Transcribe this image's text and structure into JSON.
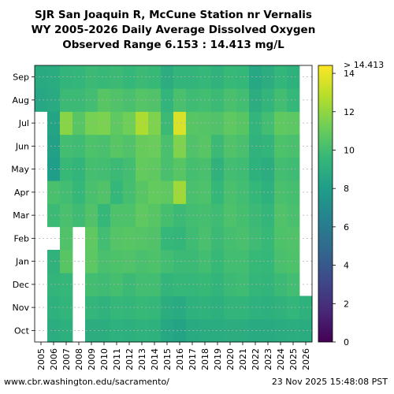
{
  "header": {
    "title_line1": "SJR San Joaquin R, McCune Station nr Vernalis",
    "title_line2": "WY 2005-2026 Daily Average Dissolved Oxygen",
    "title_line3": "Observed Range 6.153 : 14.413 mg/L"
  },
  "footer": {
    "url": "www.cbr.washington.edu/sacramento/",
    "timestamp": "23 Nov 2025 15:48:08 PST"
  },
  "chart_data": {
    "type": "heatmap",
    "title": "SJR San Joaquin R, McCune Station nr Vernalis WY 2005-2026 Daily Average Dissolved Oxygen",
    "subtitle": "Observed Range 6.153 : 14.413 mg/L",
    "x_categories": [
      "2005",
      "2006",
      "2007",
      "2008",
      "2009",
      "2010",
      "2011",
      "2012",
      "2013",
      "2014",
      "2015",
      "2016",
      "2017",
      "2018",
      "2019",
      "2020",
      "2021",
      "2022",
      "2023",
      "2024",
      "2025",
      "2026"
    ],
    "y_categories": [
      "Oct",
      "Nov",
      "Dec",
      "Jan",
      "Feb",
      "Mar",
      "Apr",
      "May",
      "Jun",
      "Jul",
      "Aug",
      "Sep"
    ],
    "observed_min": 6.153,
    "observed_max": 14.413,
    "units": "mg/L",
    "colorbar": {
      "ticks": [
        0,
        2,
        4,
        6,
        8,
        10,
        12,
        14
      ],
      "top_label": "> 14.413",
      "range": [
        0,
        14.413
      ],
      "colormap": "viridis"
    },
    "monthly_values": [
      {
        "wy": "2005",
        "values": [
          null,
          null,
          null,
          null,
          null,
          null,
          null,
          null,
          null,
          null,
          8.6,
          8.8
        ]
      },
      {
        "wy": "2006",
        "values": [
          9.0,
          9.2,
          9.4,
          9.3,
          null,
          9.8,
          10.2,
          8.0,
          8.2,
          8.4,
          8.8,
          8.9
        ]
      },
      {
        "wy": "2007",
        "values": [
          9.1,
          9.4,
          9.6,
          10.6,
          10.4,
          10.2,
          10.0,
          9.7,
          10.0,
          11.8,
          9.8,
          9.4
        ]
      },
      {
        "wy": "2008",
        "values": [
          null,
          null,
          null,
          null,
          null,
          9.9,
          9.6,
          9.4,
          9.9,
          10.6,
          9.8,
          9.5
        ]
      },
      {
        "wy": "2009",
        "values": [
          9.0,
          9.5,
          10.0,
          10.7,
          10.8,
          10.4,
          10.2,
          10.1,
          10.3,
          11.4,
          10.0,
          9.8
        ]
      },
      {
        "wy": "2010",
        "values": [
          9.0,
          9.3,
          9.9,
          10.2,
          10.0,
          9.6,
          10.4,
          10.0,
          10.2,
          11.5,
          10.6,
          9.7
        ]
      },
      {
        "wy": "2011",
        "values": [
          9.2,
          9.6,
          10.1,
          10.3,
          10.5,
          10.3,
          9.6,
          9.8,
          10.6,
          10.8,
          10.4,
          9.8
        ]
      },
      {
        "wy": "2012",
        "values": [
          9.1,
          9.5,
          9.8,
          10.4,
          10.6,
          10.3,
          10.1,
          10.0,
          10.4,
          11.2,
          10.2,
          9.6
        ]
      },
      {
        "wy": "2013",
        "values": [
          9.3,
          9.7,
          10.0,
          10.2,
          10.5,
          10.8,
          10.6,
          10.9,
          11.0,
          12.6,
          10.5,
          9.8
        ]
      },
      {
        "wy": "2014",
        "values": [
          9.2,
          9.6,
          10.0,
          10.3,
          10.4,
          10.6,
          10.9,
          10.8,
          11.1,
          11.6,
          10.4,
          9.7
        ]
      },
      {
        "wy": "2015",
        "values": [
          8.6,
          9.0,
          9.4,
          10.0,
          9.6,
          10.1,
          10.8,
          10.2,
          10.2,
          9.8,
          9.4,
          9.0
        ]
      },
      {
        "wy": "2016",
        "values": [
          8.4,
          8.8,
          9.6,
          9.8,
          9.5,
          9.8,
          12.3,
          10.6,
          11.6,
          13.6,
          10.2,
          9.4
        ]
      },
      {
        "wy": "2017",
        "values": [
          8.8,
          9.2,
          9.6,
          9.8,
          9.9,
          10.0,
          10.2,
          10.1,
          10.4,
          10.6,
          9.9,
          9.4
        ]
      },
      {
        "wy": "2018",
        "values": [
          8.9,
          9.3,
          9.7,
          10.0,
          10.2,
          10.1,
          10.3,
          10.2,
          10.6,
          10.5,
          10.0,
          9.6
        ]
      },
      {
        "wy": "2019",
        "values": [
          8.9,
          9.1,
          9.4,
          9.7,
          9.8,
          9.9,
          9.6,
          9.3,
          9.8,
          10.4,
          9.8,
          9.3
        ]
      },
      {
        "wy": "2020",
        "values": [
          9.0,
          9.4,
          9.8,
          10.0,
          10.1,
          10.3,
          10.2,
          10.0,
          10.4,
          10.8,
          10.2,
          9.7
        ]
      },
      {
        "wy": "2021",
        "values": [
          9.0,
          9.4,
          9.9,
          10.0,
          10.2,
          10.1,
          10.0,
          9.9,
          10.2,
          10.6,
          10.0,
          9.6
        ]
      },
      {
        "wy": "2022",
        "values": [
          8.8,
          9.2,
          9.5,
          9.7,
          9.9,
          9.8,
          9.6,
          9.2,
          9.3,
          9.4,
          9.0,
          8.6
        ]
      },
      {
        "wy": "2023",
        "values": [
          8.8,
          9.1,
          9.4,
          9.6,
          9.7,
          9.5,
          9.2,
          9.0,
          9.4,
          10.0,
          9.4,
          9.0
        ]
      },
      {
        "wy": "2024",
        "values": [
          8.9,
          9.3,
          9.8,
          10.2,
          10.3,
          10.4,
          10.2,
          10.0,
          10.3,
          10.8,
          10.0,
          9.5
        ]
      },
      {
        "wy": "2025",
        "values": [
          9.0,
          9.5,
          10.0,
          10.3,
          10.4,
          10.2,
          10.1,
          9.9,
          10.2,
          10.7,
          9.6,
          9.2
        ]
      },
      {
        "wy": "2026",
        "values": [
          8.9,
          9.2,
          null,
          null,
          null,
          null,
          null,
          null,
          null,
          null,
          null,
          null
        ]
      }
    ]
  }
}
